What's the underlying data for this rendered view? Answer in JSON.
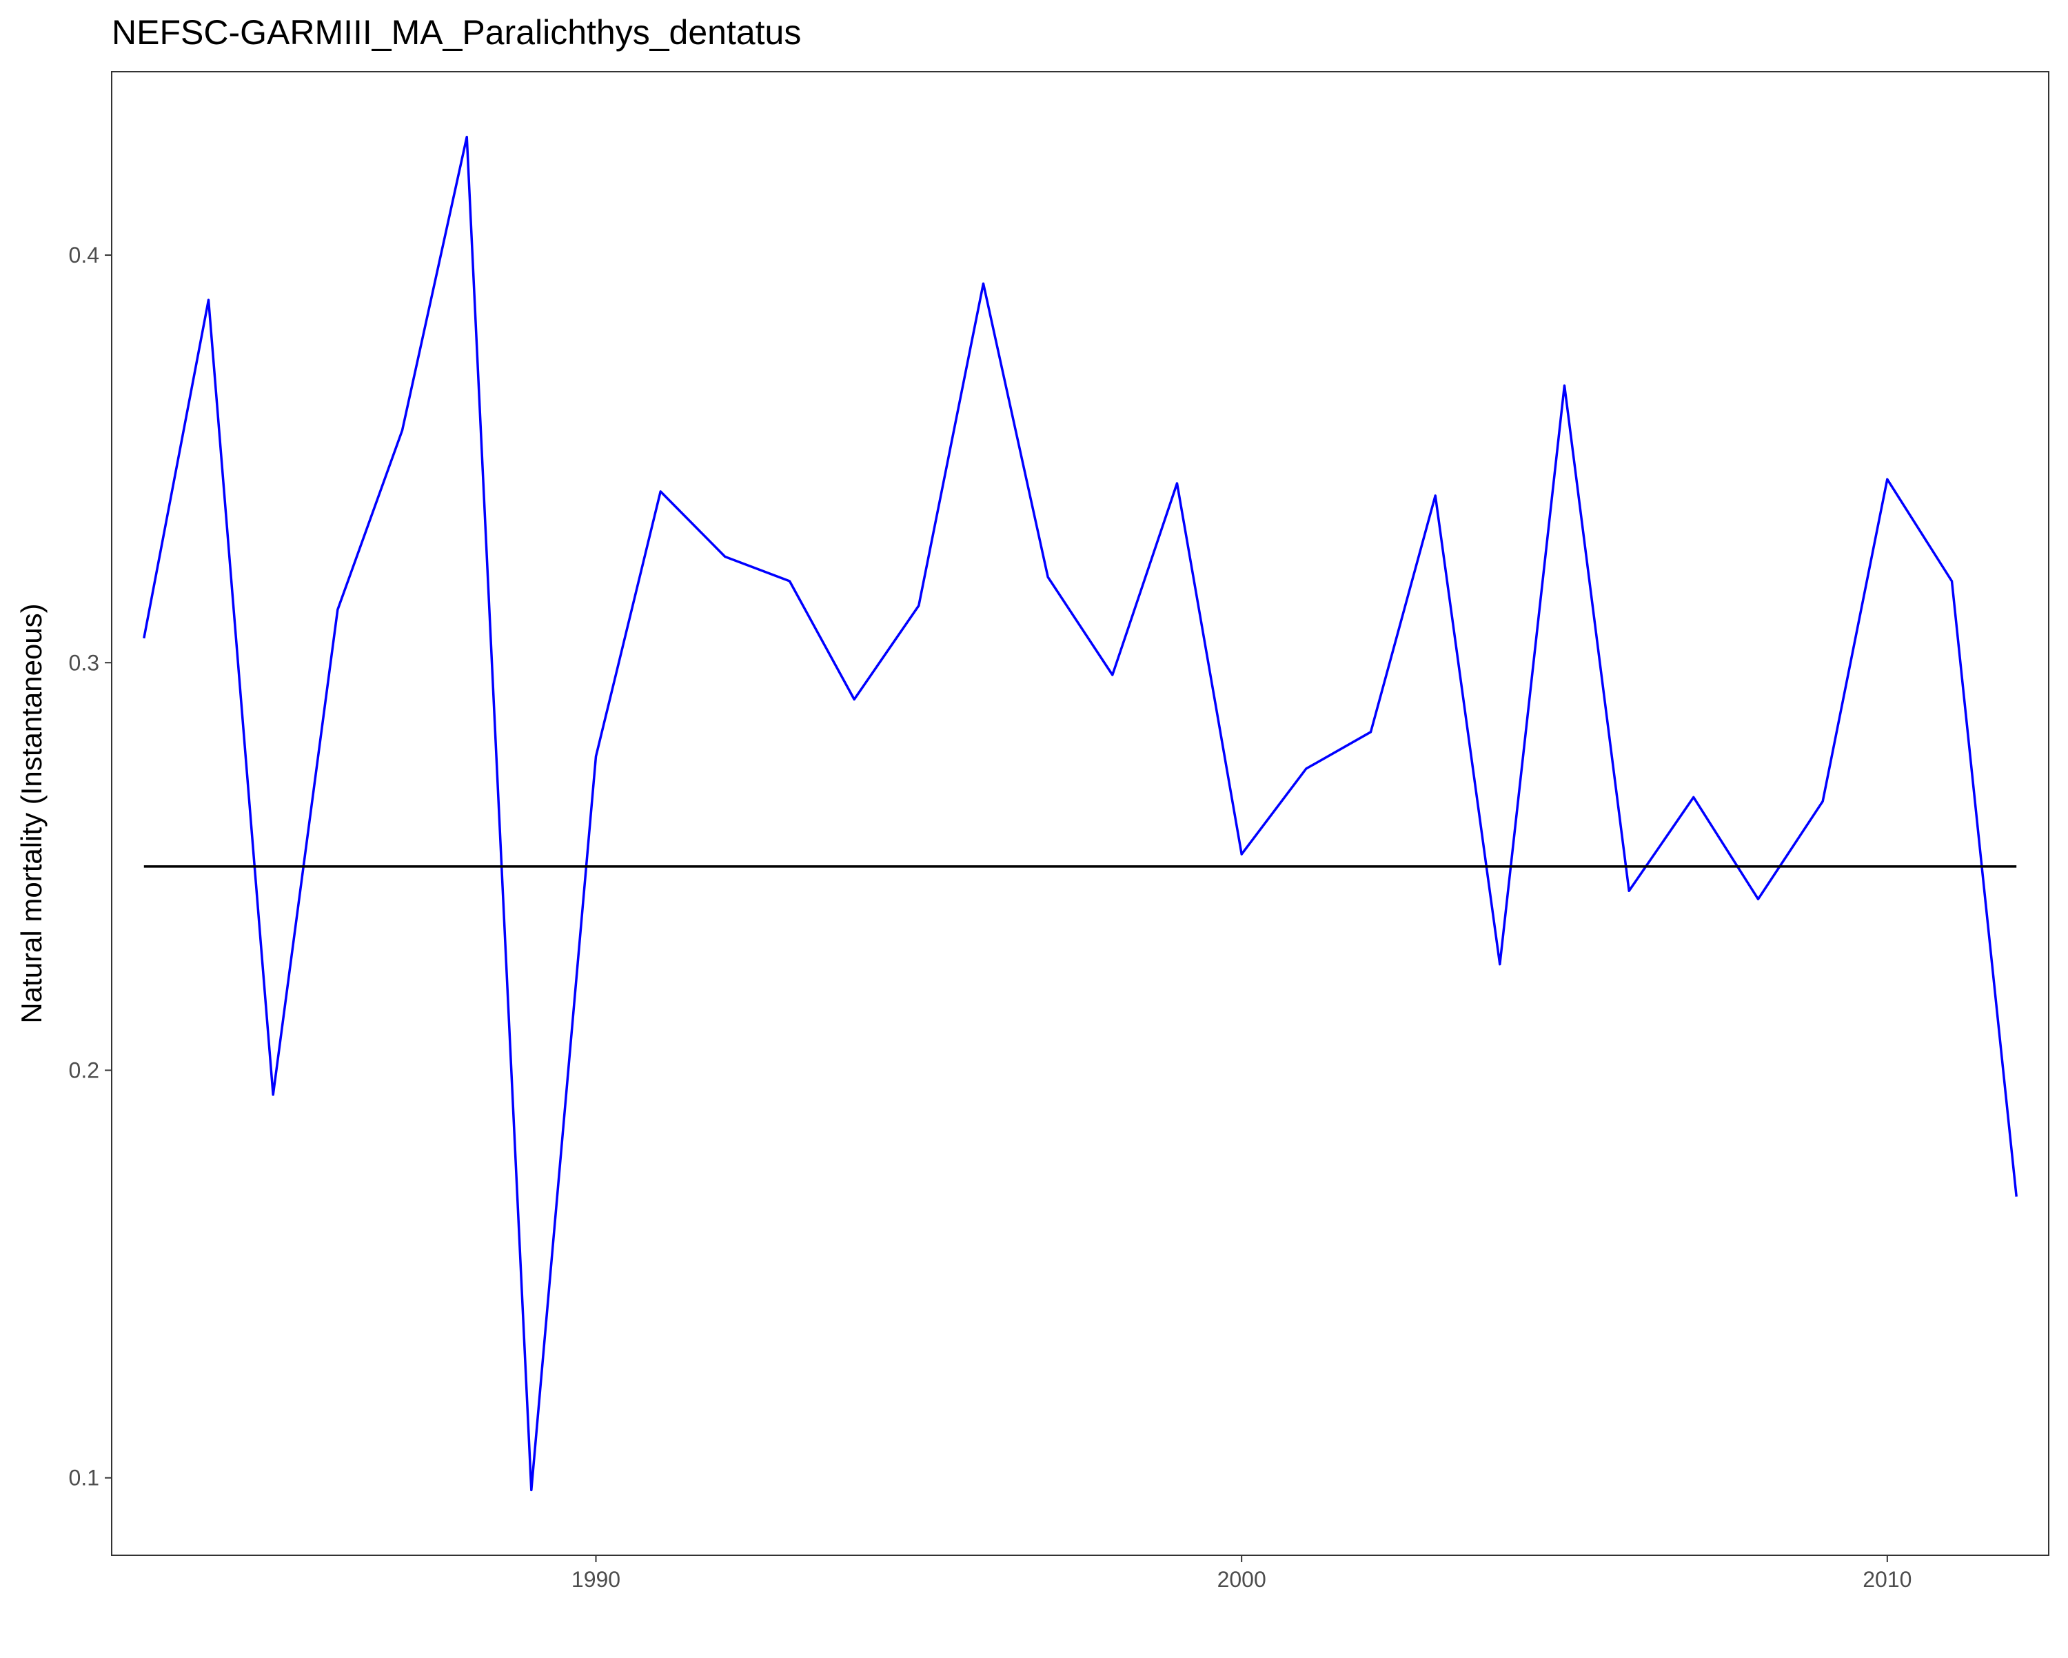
{
  "chart_data": {
    "type": "line",
    "title": "NEFSC-GARMIII_MA_Paralichthys_dentatus",
    "xlabel": "",
    "ylabel": "Natural mortality (Instantaneous)",
    "xlim": [
      1982.5,
      2012.5
    ],
    "ylim": [
      0.081,
      0.445
    ],
    "x_ticks": [
      1990,
      2000,
      2010
    ],
    "y_ticks": [
      0.1,
      0.2,
      0.3,
      0.4
    ],
    "grid": false,
    "series": [
      {
        "color": "#0000ff",
        "x": [
          1983,
          1984,
          1985,
          1986,
          1987,
          1988,
          1989,
          1990,
          1991,
          1992,
          1993,
          1994,
          1995,
          1996,
          1997,
          1998,
          1999,
          2000,
          2001,
          2002,
          2003,
          2004,
          2005,
          2006,
          2007,
          2008,
          2009,
          2010,
          2011,
          2012
        ],
        "values": [
          0.306,
          0.389,
          0.194,
          0.313,
          0.357,
          0.429,
          0.097,
          0.277,
          0.342,
          0.326,
          0.32,
          0.291,
          0.314,
          0.393,
          0.321,
          0.297,
          0.344,
          0.253,
          0.274,
          0.283,
          0.341,
          0.226,
          0.368,
          0.244,
          0.267,
          0.242,
          0.266,
          0.345,
          0.32,
          0.169
        ]
      },
      {
        "color": "#000000",
        "x": [
          1983,
          2012
        ],
        "values": [
          0.25,
          0.25
        ]
      }
    ]
  }
}
